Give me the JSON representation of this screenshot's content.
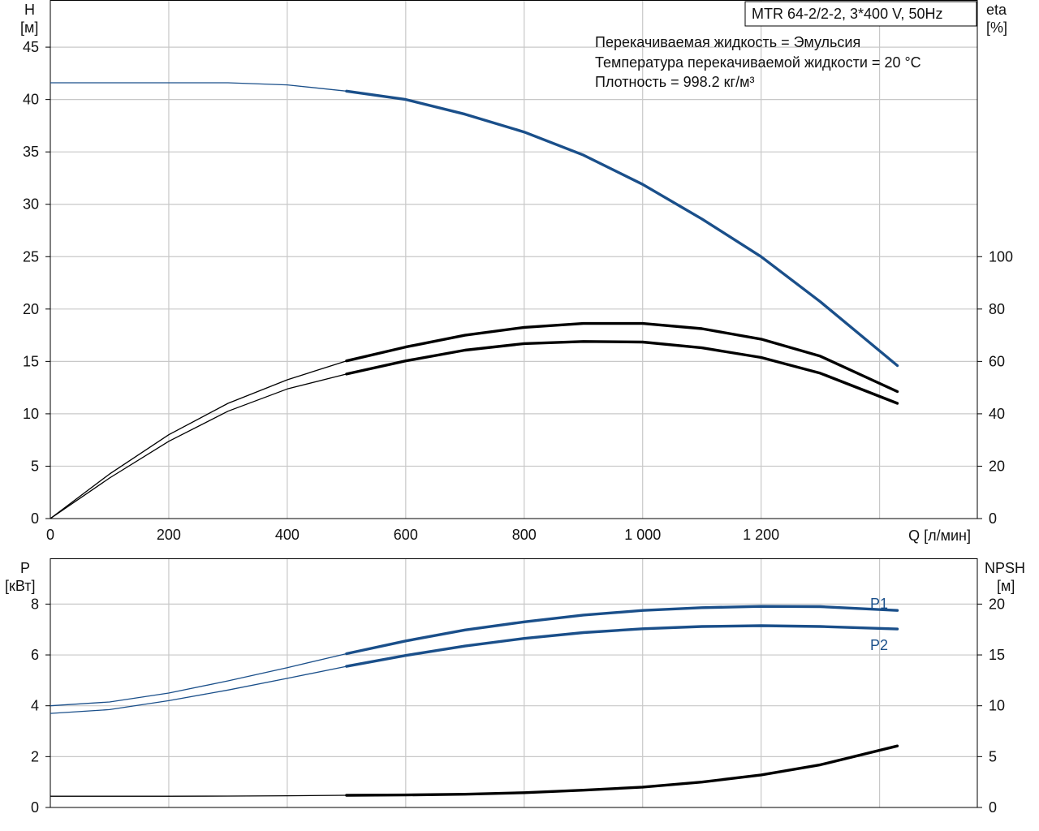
{
  "model_label": "MTR 64-2/2-2, 3*400 V, 50Hz",
  "info_lines": [
    "Перекачиваемая жидкость = Эмульсия",
    "Температура перекачиваемой жидкости = 20 °C",
    "Плотность = 998.2 кг/м³"
  ],
  "colors": {
    "blue": "#1a4f8a",
    "black": "#000000",
    "grid": "#c8c8c8"
  },
  "chart_data": [
    {
      "type": "line",
      "x_axis": {
        "label": "Q [л/мин]",
        "range": [
          0,
          1565
        ],
        "ticks": [
          0,
          200,
          400,
          600,
          800,
          1000,
          1200,
          1400
        ],
        "tick_labels": [
          "0",
          "200",
          "400",
          "600",
          "800",
          "1 000",
          "1 200",
          ""
        ]
      },
      "y_left": {
        "label_top": "H",
        "label_unit": "[м]",
        "range": [
          0,
          49.5
        ],
        "ticks": [
          0,
          5,
          10,
          15,
          20,
          25,
          30,
          35,
          40,
          45
        ],
        "tick_labels": [
          "0",
          "5",
          "10",
          "15",
          "20",
          "25",
          "30",
          "35",
          "40",
          "45"
        ]
      },
      "y_right": {
        "label_top": "eta",
        "label_unit": "[%]",
        "range": [
          0,
          198
        ],
        "ticks": [
          0,
          20,
          40,
          60,
          80,
          100
        ],
        "tick_labels": [
          "0",
          "20",
          "40",
          "60",
          "80",
          "100"
        ]
      },
      "series": [
        {
          "axis": "left",
          "color": "blue",
          "duty_from": 500,
          "points": [
            [
              0,
              41.6
            ],
            [
              100,
              41.6
            ],
            [
              200,
              41.6
            ],
            [
              300,
              41.6
            ],
            [
              400,
              41.4
            ],
            [
              500,
              40.8
            ],
            [
              600,
              40.0
            ],
            [
              700,
              38.6
            ],
            [
              800,
              36.9
            ],
            [
              900,
              34.7
            ],
            [
              1000,
              31.9
            ],
            [
              1100,
              28.6
            ],
            [
              1200,
              25.0
            ],
            [
              1300,
              20.7
            ],
            [
              1430,
              14.6
            ]
          ]
        },
        {
          "axis": "right",
          "color": "black",
          "duty_from": 500,
          "points": [
            [
              0,
              0
            ],
            [
              100,
              17
            ],
            [
              200,
              32
            ],
            [
              300,
              44
            ],
            [
              400,
              53
            ],
            [
              500,
              60.2
            ],
            [
              600,
              65.5
            ],
            [
              700,
              70
            ],
            [
              800,
              73
            ],
            [
              900,
              74.5
            ],
            [
              1000,
              74.5
            ],
            [
              1100,
              72.5
            ],
            [
              1200,
              68.5
            ],
            [
              1300,
              62
            ],
            [
              1430,
              48.5
            ]
          ]
        },
        {
          "axis": "right",
          "color": "black",
          "duty_from": 500,
          "points": [
            [
              0,
              0
            ],
            [
              100,
              15.5
            ],
            [
              200,
              29.5
            ],
            [
              300,
              41
            ],
            [
              400,
              49.5
            ],
            [
              500,
              55.2
            ],
            [
              600,
              60.2
            ],
            [
              700,
              64.3
            ],
            [
              800,
              66.8
            ],
            [
              900,
              67.6
            ],
            [
              1000,
              67.4
            ],
            [
              1100,
              65.2
            ],
            [
              1200,
              61.5
            ],
            [
              1300,
              55.5
            ],
            [
              1430,
              44
            ]
          ]
        }
      ]
    },
    {
      "type": "line",
      "x_axis": {
        "range": [
          0,
          1565
        ],
        "ticks": [
          0,
          200,
          400,
          600,
          800,
          1000,
          1200,
          1400
        ]
      },
      "y_left": {
        "label_top": "P",
        "label_unit": "[кВт]",
        "range": [
          0,
          9.8
        ],
        "ticks": [
          0,
          2,
          4,
          6,
          8
        ],
        "tick_labels": [
          "0",
          "2",
          "4",
          "6",
          "8"
        ]
      },
      "y_right": {
        "label_top": "NPSH",
        "label_unit": "[м]",
        "range": [
          0,
          24.5
        ],
        "ticks": [
          0,
          5,
          10,
          15,
          20
        ],
        "tick_labels": [
          "0",
          "5",
          "10",
          "15",
          "20"
        ]
      },
      "series": [
        {
          "name": "P1",
          "axis": "left",
          "color": "blue",
          "duty_from": 500,
          "points": [
            [
              0,
              4.0
            ],
            [
              100,
              4.15
            ],
            [
              200,
              4.5
            ],
            [
              300,
              4.98
            ],
            [
              400,
              5.5
            ],
            [
              500,
              6.05
            ],
            [
              600,
              6.55
            ],
            [
              700,
              6.98
            ],
            [
              800,
              7.3
            ],
            [
              900,
              7.57
            ],
            [
              1000,
              7.75
            ],
            [
              1100,
              7.86
            ],
            [
              1200,
              7.91
            ],
            [
              1300,
              7.9
            ],
            [
              1430,
              7.75
            ]
          ]
        },
        {
          "name": "P2",
          "axis": "left",
          "color": "blue",
          "duty_from": 500,
          "points": [
            [
              0,
              3.7
            ],
            [
              100,
              3.85
            ],
            [
              200,
              4.2
            ],
            [
              300,
              4.62
            ],
            [
              400,
              5.08
            ],
            [
              500,
              5.55
            ],
            [
              600,
              5.98
            ],
            [
              700,
              6.35
            ],
            [
              800,
              6.65
            ],
            [
              900,
              6.88
            ],
            [
              1000,
              7.03
            ],
            [
              1100,
              7.12
            ],
            [
              1200,
              7.15
            ],
            [
              1300,
              7.12
            ],
            [
              1430,
              7.02
            ]
          ]
        },
        {
          "axis": "right",
          "color": "black",
          "duty_from": 500,
          "points": [
            [
              0,
              1.1
            ],
            [
              100,
              1.1
            ],
            [
              200,
              1.1
            ],
            [
              300,
              1.12
            ],
            [
              400,
              1.15
            ],
            [
              500,
              1.2
            ],
            [
              600,
              1.23
            ],
            [
              700,
              1.3
            ],
            [
              800,
              1.45
            ],
            [
              900,
              1.7
            ],
            [
              1000,
              2.0
            ],
            [
              1100,
              2.5
            ],
            [
              1200,
              3.2
            ],
            [
              1300,
              4.2
            ],
            [
              1430,
              6.05
            ]
          ]
        }
      ]
    }
  ]
}
